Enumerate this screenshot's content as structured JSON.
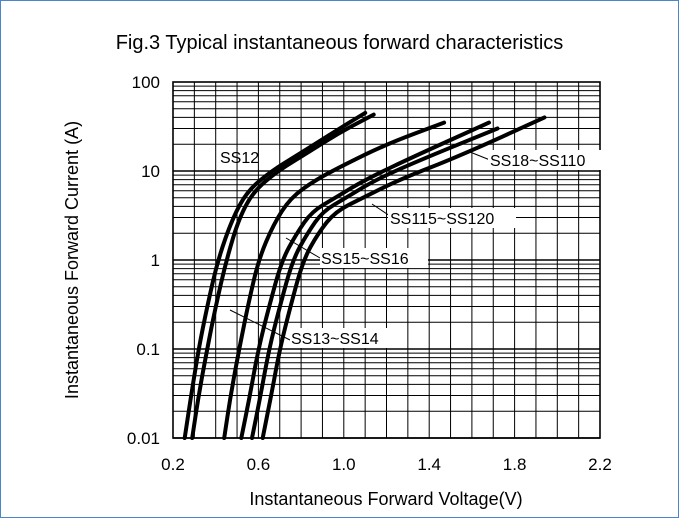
{
  "chart_data": {
    "type": "line",
    "title": "Fig.3 Typical instantaneous forward characteristics",
    "xlabel": "Instantaneous Forward Voltage(V)",
    "ylabel": "Instantaneous Forward Current (A)",
    "xlim": [
      0.2,
      2.2
    ],
    "ylim": [
      0.01,
      100
    ],
    "yscale": "log",
    "xticks": [
      0.2,
      0.6,
      1.0,
      1.4,
      1.8,
      2.2
    ],
    "xtick_labels": [
      "0.2",
      "0.6",
      "1.0",
      "1.4",
      "1.8",
      "2.2"
    ],
    "yticks": [
      0.01,
      0.1,
      1,
      10,
      100
    ],
    "ytick_labels": [
      "0.01",
      "0.1",
      "1",
      "10",
      "100"
    ],
    "grid": true,
    "colors": {
      "curve": "#000000",
      "grid": "#000000",
      "frame": "#4a86c8"
    },
    "series": [
      {
        "name": "SS12",
        "x": [
          0.255,
          0.285,
          0.32,
          0.36,
          0.41,
          0.48,
          0.55,
          0.66,
          0.8,
          0.95,
          1.1
        ],
        "y": [
          0.01,
          0.03,
          0.1,
          0.3,
          1,
          3,
          6,
          10,
          16,
          27,
          45
        ]
      },
      {
        "name": "SS12",
        "x": [
          0.29,
          0.32,
          0.36,
          0.4,
          0.45,
          0.51,
          0.58,
          0.69,
          0.83,
          0.98,
          1.14
        ],
        "y": [
          0.01,
          0.03,
          0.1,
          0.3,
          1,
          3,
          6,
          10,
          16,
          27,
          43
        ]
      },
      {
        "name": "SS13~SS14",
        "x": [
          0.44,
          0.47,
          0.51,
          0.55,
          0.6,
          0.67,
          0.75,
          0.87,
          1.01,
          1.2,
          1.47
        ],
        "y": [
          0.01,
          0.03,
          0.1,
          0.3,
          1,
          2.5,
          5,
          8,
          12,
          20,
          35
        ]
      },
      {
        "name": "SS15~SS16",
        "x": [
          0.52,
          0.56,
          0.6,
          0.65,
          0.71,
          0.78,
          0.85,
          0.96,
          1.1,
          1.34,
          1.68
        ],
        "y": [
          0.01,
          0.03,
          0.1,
          0.3,
          1,
          2,
          3.5,
          5,
          8,
          15,
          35
        ]
      },
      {
        "name": "SS115~SS120",
        "x": [
          0.57,
          0.61,
          0.65,
          0.7,
          0.76,
          0.83,
          0.9,
          1.01,
          1.15,
          1.38,
          1.72
        ],
        "y": [
          0.01,
          0.03,
          0.1,
          0.3,
          1,
          2,
          3.5,
          5,
          8,
          14,
          30
        ]
      },
      {
        "name": "SS18~SS110",
        "x": [
          0.62,
          0.66,
          0.7,
          0.75,
          0.81,
          0.88,
          0.96,
          1.09,
          1.26,
          1.55,
          1.94
        ],
        "y": [
          0.01,
          0.03,
          0.1,
          0.3,
          1,
          2,
          3.5,
          5,
          8,
          15,
          40
        ]
      }
    ],
    "annotations": [
      "SS12",
      "SS13~SS14",
      "SS15~SS16",
      "SS115~SS120",
      "SS18~SS110"
    ]
  }
}
